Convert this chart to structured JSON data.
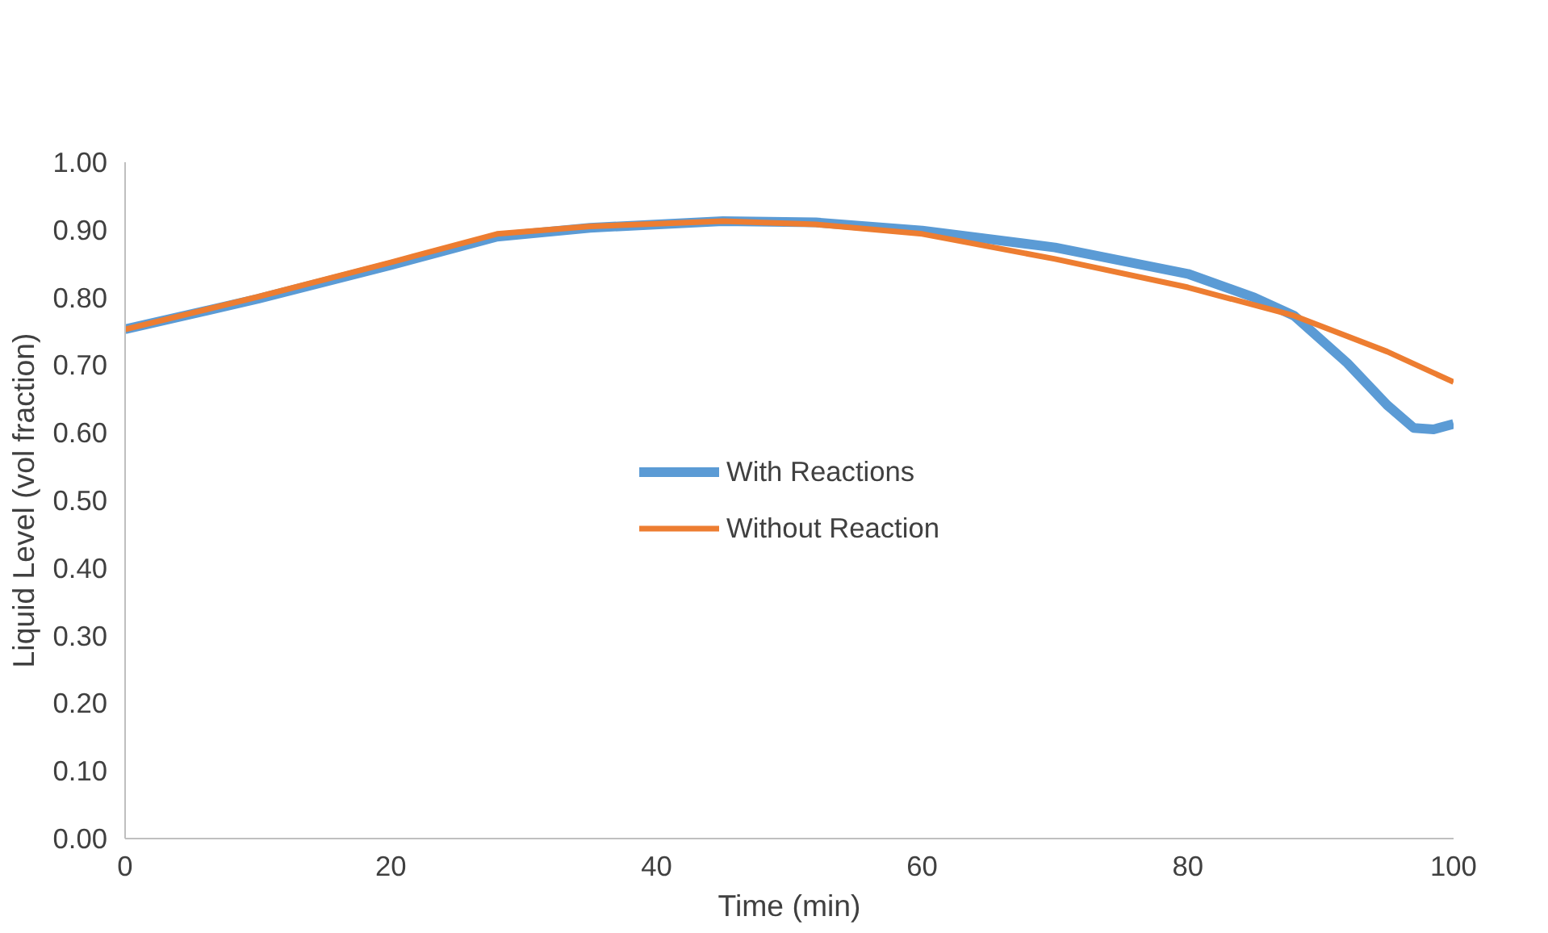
{
  "chart_data": {
    "type": "line",
    "xlabel": "Time (min)",
    "ylabel": "Liquid Level (vol fraction)",
    "xlim": [
      0,
      100
    ],
    "xticks": [
      0,
      20,
      40,
      60,
      80,
      100
    ],
    "ylim": [
      0,
      1
    ],
    "yticks": [
      {
        "value": 0,
        "label": "0.00"
      },
      {
        "value": 0.1,
        "label": "0.10"
      },
      {
        "value": 0.2,
        "label": "0.20"
      },
      {
        "value": 0.3,
        "label": "0.30"
      },
      {
        "value": 0.4,
        "label": "0.40"
      },
      {
        "value": 0.5,
        "label": "0.50"
      },
      {
        "value": 0.6,
        "label": "0.60"
      },
      {
        "value": 0.7,
        "label": "0.70"
      },
      {
        "value": 0.8,
        "label": "0.80"
      },
      {
        "value": 0.9,
        "label": "0.90"
      },
      {
        "value": 1,
        "label": "1.00"
      }
    ],
    "grid": false,
    "legend": "center",
    "marker": "none",
    "line_style": "solid",
    "series": [
      {
        "name": "With Reactions",
        "color": "#5b9bd5",
        "x": [
          0,
          10,
          20,
          28,
          35,
          45,
          52,
          60,
          70,
          80,
          85,
          88,
          92,
          95,
          97,
          98.5,
          100
        ],
        "values": [
          0.753,
          0.798,
          0.848,
          0.89,
          0.903,
          0.913,
          0.911,
          0.899,
          0.874,
          0.835,
          0.8,
          0.773,
          0.703,
          0.641,
          0.607,
          0.605,
          0.613
        ]
      },
      {
        "name": "Without Reaction",
        "color": "#ed7d31",
        "x": [
          0,
          10,
          20,
          28,
          35,
          45,
          52,
          60,
          70,
          80,
          88,
          95,
          100
        ],
        "values": [
          0.753,
          0.801,
          0.852,
          0.894,
          0.905,
          0.913,
          0.908,
          0.894,
          0.857,
          0.815,
          0.773,
          0.72,
          0.675
        ]
      }
    ]
  }
}
